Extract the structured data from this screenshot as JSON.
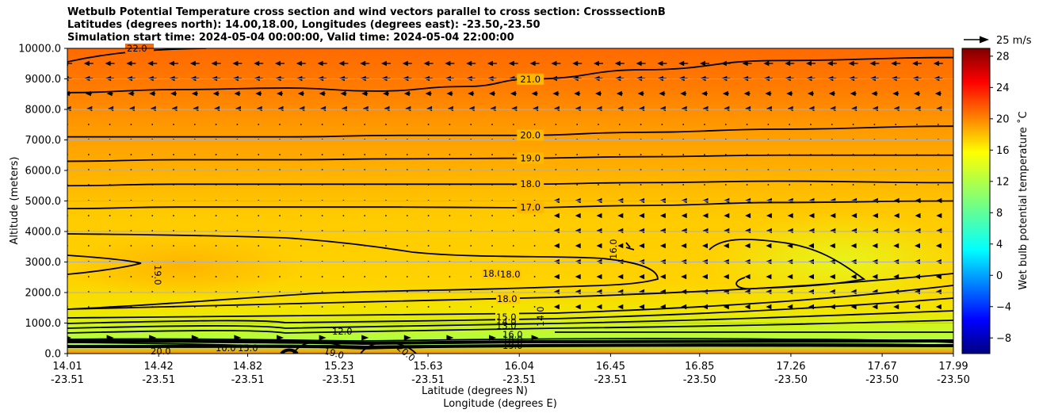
{
  "chart_data": {
    "type": "heatmap",
    "title_lines": [
      "Wetbulb Potential Temperature cross section and wind vectors parallel to cross section: CrosssectionB",
      "Latitudes (degrees north): 14.00,18.00, Longitudes (degrees east): -23.50,-23.50",
      "Simulation start time: 2024-05-04 00:00:00, Valid time: 2024-05-04 22:00:00"
    ],
    "xlabel": "Latitude (degrees N)",
    "xlabel2": "Longitude (degrees E)",
    "ylabel": "Altitude (meters)",
    "x_ticks": [
      {
        "lat": "14.01",
        "lon": "-23.51",
        "value": 14.01
      },
      {
        "lat": "14.42",
        "lon": "-23.51",
        "value": 14.42
      },
      {
        "lat": "14.82",
        "lon": "-23.51",
        "value": 14.82
      },
      {
        "lat": "15.23",
        "lon": "-23.51",
        "value": 15.23
      },
      {
        "lat": "15.63",
        "lon": "-23.51",
        "value": 15.63
      },
      {
        "lat": "16.04",
        "lon": "-23.51",
        "value": 16.04
      },
      {
        "lat": "16.45",
        "lon": "-23.51",
        "value": 16.45
      },
      {
        "lat": "16.85",
        "lon": "-23.50",
        "value": 16.85
      },
      {
        "lat": "17.26",
        "lon": "-23.50",
        "value": 17.26
      },
      {
        "lat": "17.67",
        "lon": "-23.50",
        "value": 17.67
      },
      {
        "lat": "17.99",
        "lon": "-23.50",
        "value": 17.99
      }
    ],
    "xlim": [
      14.01,
      17.99
    ],
    "y_ticks": [
      "0.0",
      "1000.0",
      "2000.0",
      "3000.0",
      "4000.0",
      "5000.0",
      "6000.0",
      "7000.0",
      "8000.0",
      "9000.0",
      "10000.0"
    ],
    "ylim": [
      0,
      10000
    ],
    "grid": "horizontal",
    "colorbar": {
      "label": "Wet bulb potential temperature ˚C",
      "range": [
        -10,
        29
      ],
      "ticks": [
        "−8",
        "−4",
        "0",
        "4",
        "8",
        "12",
        "16",
        "20",
        "24",
        "28"
      ],
      "tick_values": [
        -8,
        -4,
        0,
        4,
        8,
        12,
        16,
        20,
        24,
        28
      ],
      "colormap": "jet"
    },
    "quiver_key": "25 m/s",
    "contours": [
      {
        "level": 21.0,
        "label": "21.0",
        "points": [
          [
            14.01,
            8550
          ],
          [
            14.5,
            8650
          ],
          [
            15.0,
            8700
          ],
          [
            15.4,
            8600
          ],
          [
            15.8,
            8750
          ],
          [
            16.1,
            9000
          ],
          [
            16.6,
            9300
          ],
          [
            17.2,
            9600
          ],
          [
            17.99,
            9700
          ]
        ]
      },
      {
        "level": 20.0,
        "label": "20.0",
        "points": [
          [
            14.01,
            7100
          ],
          [
            14.5,
            7100
          ],
          [
            15.0,
            7100
          ],
          [
            15.5,
            7150
          ],
          [
            16.04,
            7150
          ],
          [
            16.6,
            7250
          ],
          [
            17.2,
            7350
          ],
          [
            17.99,
            7450
          ]
        ]
      },
      {
        "level": 19.0,
        "label": "19.0",
        "points": [
          [
            14.01,
            6300
          ],
          [
            14.5,
            6350
          ],
          [
            15.0,
            6350
          ],
          [
            15.5,
            6380
          ],
          [
            16.04,
            6400
          ],
          [
            16.6,
            6450
          ],
          [
            17.2,
            6500
          ],
          [
            17.99,
            6500
          ]
        ]
      },
      {
        "level": 18.0,
        "label": "18.0",
        "points": [
          [
            14.01,
            5500
          ],
          [
            14.5,
            5550
          ],
          [
            15.0,
            5550
          ],
          [
            15.5,
            5550
          ],
          [
            16.04,
            5550
          ],
          [
            16.6,
            5600
          ],
          [
            17.2,
            5650
          ],
          [
            17.99,
            5600
          ]
        ]
      },
      {
        "level": 17.0,
        "label": "17.0",
        "points": [
          [
            14.01,
            4750
          ],
          [
            14.5,
            4800
          ],
          [
            15.0,
            4800
          ],
          [
            15.5,
            4800
          ],
          [
            16.04,
            4780
          ],
          [
            16.6,
            4850
          ],
          [
            17.2,
            4950
          ],
          [
            17.99,
            5000
          ]
        ]
      }
    ],
    "annotations": [
      "22.0",
      "19.0",
      "18.0",
      "18.0",
      "18.0",
      "16.0",
      "15.0",
      "14.0",
      "13.0",
      "12.0",
      "14.0",
      "10.0",
      "19.0",
      "20.0",
      "20.0",
      "15.0"
    ]
  }
}
